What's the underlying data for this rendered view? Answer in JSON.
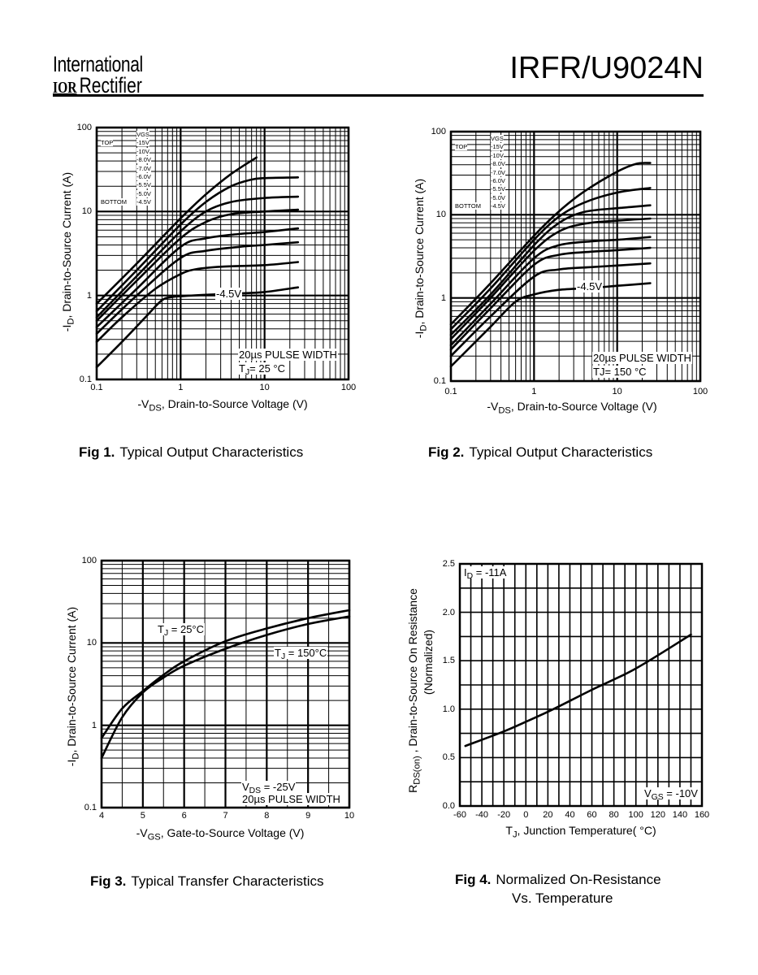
{
  "header": {
    "brand_line1": "International",
    "brand_logo": "IOR",
    "brand_line2": "Rectifier",
    "part_number": "IRFR/U9024N"
  },
  "chart_data": [
    {
      "type": "line",
      "caption_num": "Fig 1.",
      "caption": "Typical Output Characteristics",
      "x_scale": "log",
      "y_scale": "log",
      "xlim": [
        0.1,
        100
      ],
      "ylim": [
        0.1,
        100
      ],
      "x_ticks": [
        "0.1",
        "1",
        "10",
        "100"
      ],
      "y_ticks": [
        "0.1",
        "1",
        "10",
        "100"
      ],
      "xlabel": {
        "pre": "-V",
        "sub": "DS",
        "post": ", Drain-to-Source Voltage (V)"
      },
      "ylabel": {
        "pre": "-I",
        "sub": "D",
        "post": ",  Drain-to-Source Current (A)"
      },
      "grid": true,
      "legend": {
        "title": "VGS",
        "top": "TOP",
        "bottom": "BOTTOM",
        "placement": "top-left",
        "entries": [
          "-15V",
          "-10V",
          "-8.0V",
          "-7.0V",
          "-6.0V",
          "-5.5V",
          "-5.0V",
          "-4.5V"
        ]
      },
      "curve_label": "-4.5V",
      "annotations": [
        {
          "pre": "20µs PULSE WIDTH",
          "sub": "",
          "post": ""
        },
        {
          "pre": "T",
          "sub": "J",
          "post": "= 25 °C"
        }
      ],
      "series": [
        {
          "name": "-15V",
          "points": [
            [
              0.1,
              0.8
            ],
            [
              0.3,
              2.4
            ],
            [
              1,
              8.3
            ],
            [
              2,
              16
            ],
            [
              4,
              28
            ],
            [
              8,
              44
            ]
          ]
        },
        {
          "name": "-10V",
          "points": [
            [
              0.1,
              0.65
            ],
            [
              0.3,
              2.0
            ],
            [
              1,
              7.0
            ],
            [
              2,
              13
            ],
            [
              4,
              20
            ],
            [
              7,
              24
            ],
            [
              10,
              25
            ],
            [
              25,
              25.5
            ]
          ]
        },
        {
          "name": "-8.0V",
          "points": [
            [
              0.1,
              0.55
            ],
            [
              0.3,
              1.7
            ],
            [
              1,
              5.8
            ],
            [
              2,
              10
            ],
            [
              4,
              13
            ],
            [
              10,
              14.5
            ],
            [
              25,
              15
            ]
          ]
        },
        {
          "name": "-7.0V",
          "points": [
            [
              0.1,
              0.5
            ],
            [
              0.3,
              1.5
            ],
            [
              1,
              4.8
            ],
            [
              2,
              7.5
            ],
            [
              4,
              9.3
            ],
            [
              10,
              10
            ],
            [
              25,
              10.5
            ]
          ]
        },
        {
          "name": "-6.0V",
          "points": [
            [
              0.1,
              0.42
            ],
            [
              0.3,
              1.2
            ],
            [
              1,
              3.8
            ],
            [
              2,
              4.8
            ],
            [
              5,
              5.4
            ],
            [
              10,
              5.7
            ],
            [
              25,
              6.3
            ]
          ]
        },
        {
          "name": "-5.5V",
          "points": [
            [
              0.1,
              0.35
            ],
            [
              0.3,
              1.0
            ],
            [
              1,
              2.8
            ],
            [
              2,
              3.4
            ],
            [
              5,
              3.8
            ],
            [
              10,
              4.0
            ],
            [
              25,
              4.3
            ]
          ]
        },
        {
          "name": "-5.0V",
          "points": [
            [
              0.1,
              0.28
            ],
            [
              0.2,
              0.55
            ],
            [
              0.5,
              1.2
            ],
            [
              1,
              1.8
            ],
            [
              1.5,
              2.05
            ],
            [
              3,
              2.2
            ],
            [
              10,
              2.3
            ],
            [
              25,
              2.5
            ]
          ]
        },
        {
          "name": "-4.5V",
          "points": [
            [
              0.1,
              0.14
            ],
            [
              0.2,
              0.28
            ],
            [
              0.4,
              0.58
            ],
            [
              0.6,
              0.88
            ],
            [
              0.8,
              0.96
            ],
            [
              1,
              0.98
            ],
            [
              2,
              1.02
            ],
            [
              5,
              1.06
            ],
            [
              10,
              1.1
            ],
            [
              25,
              1.25
            ]
          ]
        }
      ]
    },
    {
      "type": "line",
      "caption_num": "Fig 2.",
      "caption": "Typical Output Characteristics",
      "x_scale": "log",
      "y_scale": "log",
      "xlim": [
        0.1,
        100
      ],
      "ylim": [
        0.1,
        100
      ],
      "x_ticks": [
        "0.1",
        "1",
        "10",
        "100"
      ],
      "y_ticks": [
        "0.1",
        "1",
        "10",
        "100"
      ],
      "xlabel": {
        "pre": "-V",
        "sub": "DS",
        "post": ", Drain-to-Source Voltage (V)"
      },
      "ylabel": {
        "pre": "-I",
        "sub": "D",
        "post": ",  Drain-to-Source Current (A)"
      },
      "grid": true,
      "legend": {
        "title": "VGS",
        "top": "TOP",
        "bottom": "BOTTOM",
        "placement": "top-left",
        "entries": [
          "-15V",
          "-10V",
          "-8.0V",
          "-7.0V",
          "-6.0V",
          "-5.5V",
          "-5.0V",
          "-4.5V"
        ]
      },
      "curve_label": "-4.5V",
      "annotations": [
        {
          "pre": "20µs PULSE WIDTH",
          "sub": "",
          "post": ""
        },
        {
          "pre": "TJ= 150 °C",
          "sub": "",
          "post": ""
        }
      ],
      "series": [
        {
          "name": "-15V",
          "points": [
            [
              0.1,
              0.48
            ],
            [
              0.3,
              1.5
            ],
            [
              1,
              5.6
            ],
            [
              2,
              11
            ],
            [
              4,
              19
            ],
            [
              10,
              33
            ],
            [
              17,
              41
            ],
            [
              25,
              42
            ]
          ]
        },
        {
          "name": "-10V",
          "points": [
            [
              0.1,
              0.42
            ],
            [
              0.3,
              1.3
            ],
            [
              1,
              5.0
            ],
            [
              2,
              9.5
            ],
            [
              4,
              14
            ],
            [
              10,
              18.5
            ],
            [
              25,
              21
            ]
          ]
        },
        {
          "name": "-8.0V",
          "points": [
            [
              0.1,
              0.36
            ],
            [
              0.3,
              1.1
            ],
            [
              1,
              4.3
            ],
            [
              2,
              8.0
            ],
            [
              4,
              10.8
            ],
            [
              10,
              12
            ],
            [
              25,
              13
            ]
          ]
        },
        {
          "name": "-7.0V",
          "points": [
            [
              0.1,
              0.32
            ],
            [
              0.3,
              1.0
            ],
            [
              1,
              3.7
            ],
            [
              2,
              6.3
            ],
            [
              4,
              7.8
            ],
            [
              10,
              8.5
            ],
            [
              25,
              9.0
            ]
          ]
        },
        {
          "name": "-6.0V",
          "points": [
            [
              0.1,
              0.27
            ],
            [
              0.3,
              0.85
            ],
            [
              1,
              3.0
            ],
            [
              2,
              4.3
            ],
            [
              5,
              4.8
            ],
            [
              10,
              5.0
            ],
            [
              25,
              5.4
            ]
          ]
        },
        {
          "name": "-5.5V",
          "points": [
            [
              0.1,
              0.24
            ],
            [
              0.3,
              0.75
            ],
            [
              1,
              2.5
            ],
            [
              2,
              3.3
            ],
            [
              5,
              3.6
            ],
            [
              10,
              3.75
            ],
            [
              25,
              4.0
            ]
          ]
        },
        {
          "name": "-5.0V",
          "points": [
            [
              0.1,
              0.2
            ],
            [
              0.3,
              0.6
            ],
            [
              1,
              1.8
            ],
            [
              2,
              2.2
            ],
            [
              5,
              2.35
            ],
            [
              10,
              2.45
            ],
            [
              25,
              2.6
            ]
          ]
        },
        {
          "name": "-4.5V",
          "points": [
            [
              0.1,
              0.15
            ],
            [
              0.3,
              0.45
            ],
            [
              0.6,
              0.9
            ],
            [
              1,
              1.1
            ],
            [
              2,
              1.25
            ],
            [
              5,
              1.32
            ],
            [
              10,
              1.4
            ],
            [
              25,
              1.5
            ]
          ]
        }
      ]
    },
    {
      "type": "line",
      "caption_num": "Fig 3.",
      "caption": "Typical Transfer Characteristics",
      "x_scale": "linear",
      "y_scale": "log",
      "xlim": [
        4,
        10
      ],
      "ylim": [
        0.1,
        100
      ],
      "x_ticks": [
        "4",
        "5",
        "6",
        "7",
        "8",
        "9",
        "10"
      ],
      "y_ticks": [
        "0.1",
        "1",
        "10",
        "100"
      ],
      "xlabel": {
        "pre": "-V",
        "sub": "GS",
        "post": ", Gate-to-Source Voltage (V)"
      },
      "ylabel": {
        "pre": "-I",
        "sub": "D",
        "post": ",   Drain-to-Source Current (A)"
      },
      "grid": true,
      "annotations": [
        {
          "pre": "V",
          "sub": "DS",
          "post": " = -25V"
        },
        {
          "pre": "20µs PULSE WIDTH",
          "sub": "",
          "post": ""
        },
        {
          "pre": "T",
          "sub": "J",
          "post": " = 25°C"
        },
        {
          "pre": "T",
          "sub": "J",
          "post": " = 150°C"
        }
      ],
      "series": [
        {
          "name": "TJ = 25°C",
          "points": [
            [
              4,
              0.7
            ],
            [
              4.5,
              1.6
            ],
            [
              5,
              2.6
            ],
            [
              5.5,
              4.1
            ],
            [
              6,
              6
            ],
            [
              7,
              10.5
            ],
            [
              8,
              15
            ],
            [
              9,
              20
            ],
            [
              10,
              25
            ]
          ]
        },
        {
          "name": "TJ = 150°C",
          "points": [
            [
              4,
              0.4
            ],
            [
              4.5,
              1.25
            ],
            [
              5,
              2.5
            ],
            [
              5.5,
              3.8
            ],
            [
              6,
              5.3
            ],
            [
              7,
              8.5
            ],
            [
              8,
              12.5
            ],
            [
              9,
              17
            ],
            [
              10,
              21
            ]
          ]
        }
      ]
    },
    {
      "type": "line",
      "caption_num": "Fig 4.",
      "caption": "Normalized On-Resistance",
      "caption_line2": "Vs. Temperature",
      "x_scale": "linear",
      "y_scale": "linear",
      "xlim": [
        -60,
        160
      ],
      "ylim": [
        0,
        2.5
      ],
      "x_ticks": [
        "-60",
        "-40",
        "-20",
        "0",
        "20",
        "40",
        "60",
        "80",
        "100",
        "120",
        "140",
        "160"
      ],
      "y_ticks": [
        "0.0",
        "0.5",
        "1.0",
        "1.5",
        "2.0",
        "2.5"
      ],
      "xlabel": {
        "pre": "T",
        "sub": "J",
        "post": ", Junction Temperature( °C)"
      },
      "ylabel": {
        "pre": "R",
        "sub": "DS(on)",
        "post": "  ,  Drain-to-Source On Resistance"
      },
      "ylabel_line2": "(Normalized)",
      "grid": true,
      "annotations": [
        {
          "pre": "I",
          "sub": "D",
          "post": " = -11A"
        },
        {
          "pre": "V",
          "sub": "GS",
          "post": " = -10V"
        }
      ],
      "series": [
        {
          "name": "RDS(on)",
          "points": [
            [
              -55,
              0.62
            ],
            [
              -20,
              0.77
            ],
            [
              0,
              0.87
            ],
            [
              25,
              1.0
            ],
            [
              60,
              1.2
            ],
            [
              100,
              1.42
            ],
            [
              150,
              1.77
            ]
          ]
        }
      ]
    }
  ]
}
